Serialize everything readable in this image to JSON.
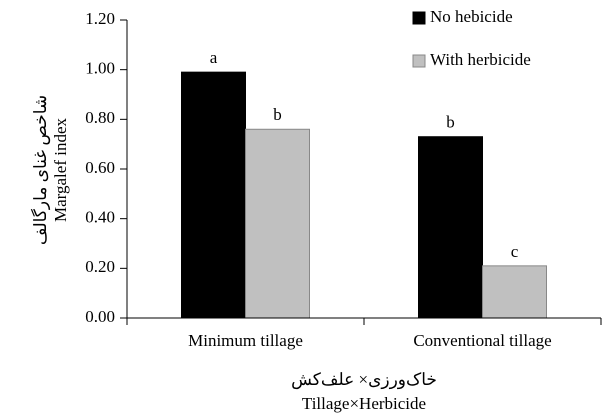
{
  "chart_data": {
    "type": "bar",
    "y_labels": [
      "شاخص غنای مارگالف",
      "Margalef index"
    ],
    "x_labels": [
      "خاک‌ورزی× علف‌کش",
      "Tillage×Herbicide"
    ],
    "categories": [
      "Minimum tillage",
      "Conventional tillage"
    ],
    "series": [
      {
        "name": "No hebicide",
        "color": "#000000",
        "values": [
          0.99,
          0.73
        ],
        "letters": [
          "a",
          "b"
        ]
      },
      {
        "name": "With herbicide",
        "color": "#c0c0c0",
        "values": [
          0.76,
          0.21
        ],
        "letters": [
          "b",
          "c"
        ]
      }
    ],
    "ylim": [
      0,
      1.2
    ],
    "yticks": [
      {
        "value": 0,
        "label": "0.00"
      },
      {
        "value": 0.2,
        "label": "0.20"
      },
      {
        "value": 0.4,
        "label": "0.40"
      },
      {
        "value": 0.6,
        "label": "0.60"
      },
      {
        "value": 0.8,
        "label": "0.80"
      },
      {
        "value": 1.0,
        "label": "1.00"
      },
      {
        "value": 1.2,
        "label": "1.20"
      }
    ],
    "legend": "top-right"
  }
}
